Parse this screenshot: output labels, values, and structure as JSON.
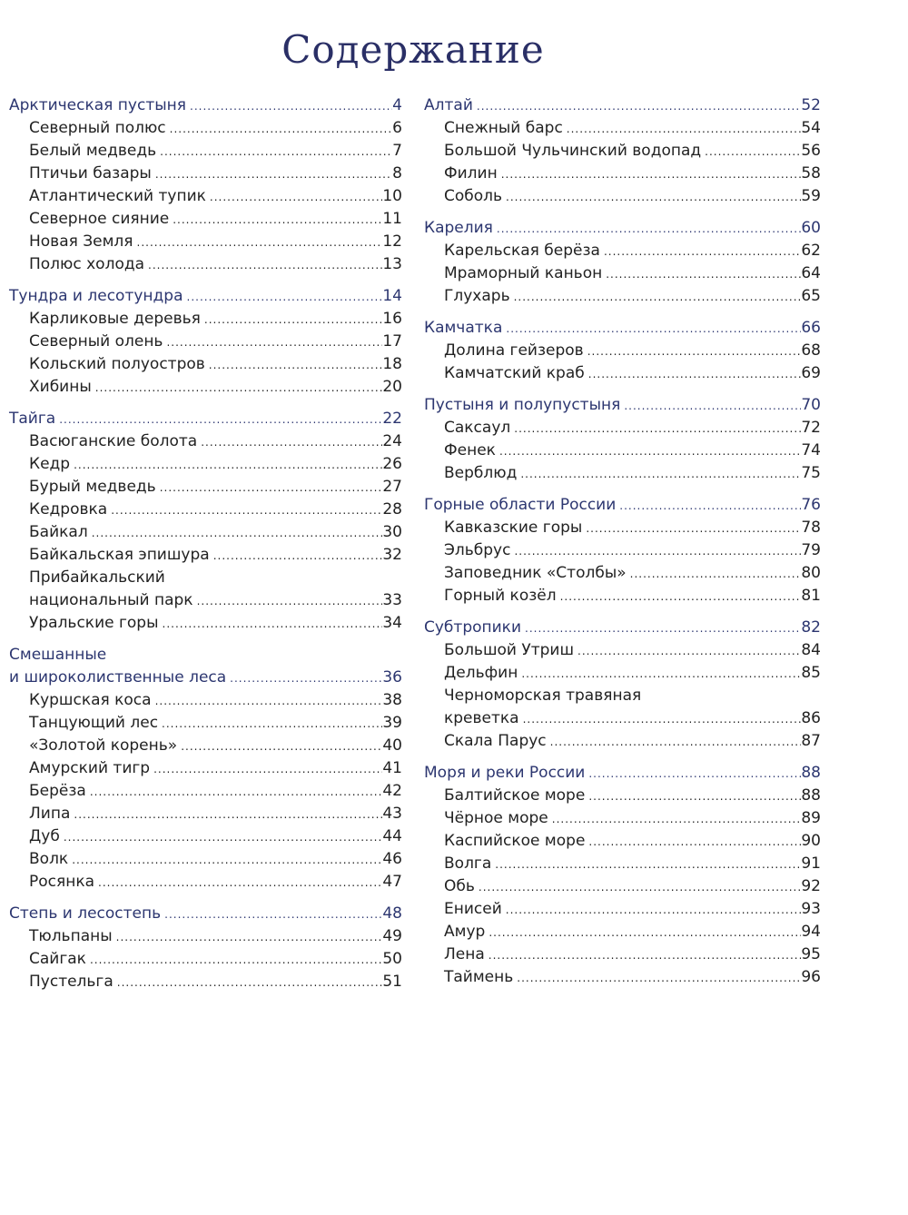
{
  "title": "Содержание",
  "colors": {
    "heading": "#2c3670",
    "title": "#2a2f66",
    "text": "#222222"
  },
  "columns": [
    [
      {
        "title": [
          "Арктическая пустыня"
        ],
        "page": "4",
        "items": [
          {
            "title": [
              "Северный полюс"
            ],
            "page": "6"
          },
          {
            "title": [
              "Белый медведь"
            ],
            "page": "7"
          },
          {
            "title": [
              "Птичьи базары"
            ],
            "page": "8"
          },
          {
            "title": [
              "Атлантический тупик"
            ],
            "page": "10"
          },
          {
            "title": [
              "Северное сияние"
            ],
            "page": "11"
          },
          {
            "title": [
              "Новая Земля"
            ],
            "page": "12"
          },
          {
            "title": [
              "Полюс холода"
            ],
            "page": "13"
          }
        ]
      },
      {
        "title": [
          "Тундра и лесотундра"
        ],
        "page": "14",
        "items": [
          {
            "title": [
              "Карликовые деревья"
            ],
            "page": "16"
          },
          {
            "title": [
              "Северный олень"
            ],
            "page": "17"
          },
          {
            "title": [
              "Кольский полуостров"
            ],
            "page": "18"
          },
          {
            "title": [
              "Хибины"
            ],
            "page": "20"
          }
        ]
      },
      {
        "title": [
          "Тайга"
        ],
        "page": "22",
        "items": [
          {
            "title": [
              "Васюганские болота"
            ],
            "page": "24"
          },
          {
            "title": [
              "Кедр"
            ],
            "page": "26"
          },
          {
            "title": [
              "Бурый медведь"
            ],
            "page": "27"
          },
          {
            "title": [
              "Кедровка"
            ],
            "page": "28"
          },
          {
            "title": [
              "Байкал"
            ],
            "page": "30"
          },
          {
            "title": [
              "Байкальская эпишура"
            ],
            "page": "32"
          },
          {
            "title": [
              "Прибайкальский",
              "национальный парк"
            ],
            "page": "33"
          },
          {
            "title": [
              "Уральские горы"
            ],
            "page": "34"
          }
        ]
      },
      {
        "title": [
          "Смешанные",
          "и широколиственные леса"
        ],
        "page": "36",
        "items": [
          {
            "title": [
              "Куршская коса"
            ],
            "page": "38"
          },
          {
            "title": [
              "Танцующий лес"
            ],
            "page": "39"
          },
          {
            "title": [
              "«Золотой корень»"
            ],
            "page": "40"
          },
          {
            "title": [
              "Амурский тигр"
            ],
            "page": "41"
          },
          {
            "title": [
              "Берёза"
            ],
            "page": "42"
          },
          {
            "title": [
              "Липа"
            ],
            "page": "43"
          },
          {
            "title": [
              "Дуб"
            ],
            "page": "44"
          },
          {
            "title": [
              "Волк"
            ],
            "page": "46"
          },
          {
            "title": [
              "Росянка"
            ],
            "page": "47"
          }
        ]
      },
      {
        "title": [
          "Степь и лесостепь"
        ],
        "page": "48",
        "items": [
          {
            "title": [
              "Тюльпаны"
            ],
            "page": "49"
          },
          {
            "title": [
              "Сайгак"
            ],
            "page": "50"
          },
          {
            "title": [
              "Пустельга"
            ],
            "page": "51"
          }
        ]
      }
    ],
    [
      {
        "title": [
          "Алтай"
        ],
        "page": "52",
        "items": [
          {
            "title": [
              "Снежный барс"
            ],
            "page": "54"
          },
          {
            "title": [
              "Большой Чульчинский водопад"
            ],
            "page": "56"
          },
          {
            "title": [
              "Филин"
            ],
            "page": "58"
          },
          {
            "title": [
              "Соболь"
            ],
            "page": "59"
          }
        ]
      },
      {
        "title": [
          "Карелия"
        ],
        "page": "60",
        "items": [
          {
            "title": [
              "Карельская берёза"
            ],
            "page": "62"
          },
          {
            "title": [
              "Мраморный каньон"
            ],
            "page": "64"
          },
          {
            "title": [
              "Глухарь"
            ],
            "page": "65"
          }
        ]
      },
      {
        "title": [
          "Камчатка"
        ],
        "page": "66",
        "items": [
          {
            "title": [
              "Долина гейзеров"
            ],
            "page": "68"
          },
          {
            "title": [
              "Камчатский краб"
            ],
            "page": "69"
          }
        ]
      },
      {
        "title": [
          "Пустыня и полупустыня"
        ],
        "page": "70",
        "items": [
          {
            "title": [
              "Саксаул"
            ],
            "page": "72"
          },
          {
            "title": [
              "Фенек"
            ],
            "page": "74"
          },
          {
            "title": [
              "Верблюд"
            ],
            "page": "75"
          }
        ]
      },
      {
        "title": [
          "Горные области России"
        ],
        "page": "76",
        "items": [
          {
            "title": [
              "Кавказские горы"
            ],
            "page": "78"
          },
          {
            "title": [
              "Эльбрус"
            ],
            "page": "79"
          },
          {
            "title": [
              "Заповедник «Столбы»"
            ],
            "page": "80"
          },
          {
            "title": [
              "Горный козёл"
            ],
            "page": "81"
          }
        ]
      },
      {
        "title": [
          "Субтропики"
        ],
        "page": "82",
        "items": [
          {
            "title": [
              "Большой Утриш"
            ],
            "page": "84"
          },
          {
            "title": [
              "Дельфин"
            ],
            "page": "85"
          },
          {
            "title": [
              "Черноморская травяная",
              "креветка"
            ],
            "page": "86"
          },
          {
            "title": [
              "Скала Парус"
            ],
            "page": "87"
          }
        ]
      },
      {
        "title": [
          "Моря и реки России"
        ],
        "page": "88",
        "items": [
          {
            "title": [
              "Балтийское море"
            ],
            "page": "88"
          },
          {
            "title": [
              "Чёрное море"
            ],
            "page": "89"
          },
          {
            "title": [
              "Каспийское море"
            ],
            "page": "90"
          },
          {
            "title": [
              "Волга"
            ],
            "page": "91"
          },
          {
            "title": [
              "Обь"
            ],
            "page": "92"
          },
          {
            "title": [
              "Енисей"
            ],
            "page": "93"
          },
          {
            "title": [
              "Амур"
            ],
            "page": "94"
          },
          {
            "title": [
              "Лена"
            ],
            "page": "95"
          },
          {
            "title": [
              "Таймень"
            ],
            "page": "96"
          }
        ]
      }
    ]
  ]
}
